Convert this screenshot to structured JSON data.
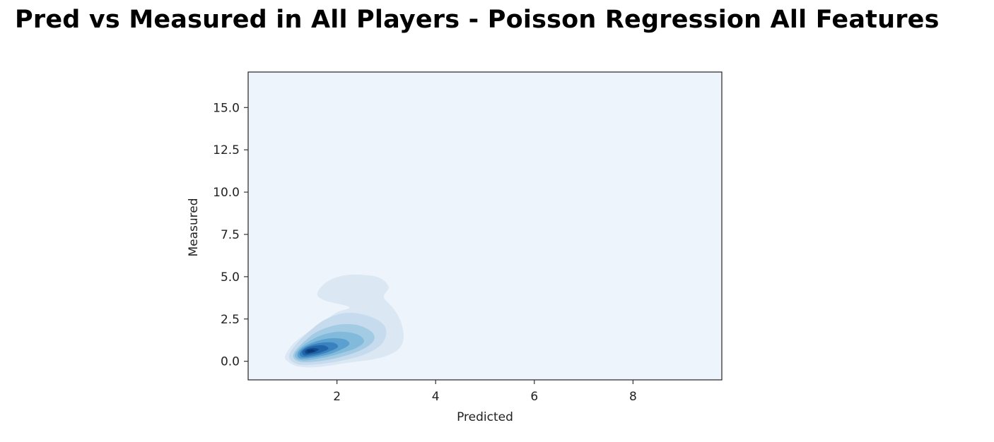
{
  "title": "Pred vs Measured in All Players - Poisson Regression All Features",
  "chart_data": {
    "type": "kde-contour",
    "xlabel": "Predicted",
    "ylabel": "Measured",
    "xlim": [
      0.2,
      9.8
    ],
    "ylim": [
      -1.1,
      17.1
    ],
    "x_ticks": [
      2,
      4,
      6,
      8
    ],
    "y_ticks": [
      0.0,
      2.5,
      5.0,
      7.5,
      10.0,
      12.5,
      15.0
    ],
    "y_tick_labels": [
      "0.0",
      "2.5",
      "5.0",
      "7.5",
      "10.0",
      "12.5",
      "15.0"
    ],
    "grid": false,
    "colormap": "Blues",
    "background_color": "#eef4fb",
    "density_peak": {
      "x": 1.45,
      "y": 0.6
    },
    "levels": [
      {
        "level": 1,
        "color": "#dbe8f4",
        "outline": [
          [
            1.2,
            -0.3
          ],
          [
            1.0,
            0.0
          ],
          [
            0.95,
            0.3
          ],
          [
            1.1,
            1.0
          ],
          [
            1.4,
            1.7
          ],
          [
            1.7,
            2.3
          ],
          [
            2.0,
            2.9
          ],
          [
            2.25,
            3.2
          ],
          [
            1.75,
            3.6
          ],
          [
            1.6,
            4.0
          ],
          [
            1.8,
            4.7
          ],
          [
            2.2,
            5.1
          ],
          [
            2.8,
            5.0
          ],
          [
            3.05,
            4.4
          ],
          [
            2.95,
            3.8
          ],
          [
            3.15,
            3.1
          ],
          [
            3.3,
            2.3
          ],
          [
            3.35,
            1.3
          ],
          [
            3.2,
            0.6
          ],
          [
            2.8,
            0.15
          ],
          [
            2.2,
            -0.1
          ],
          [
            1.6,
            -0.35
          ]
        ]
      },
      {
        "level": 2,
        "color": "#c7dbef",
        "outline": [
          [
            1.25,
            -0.2
          ],
          [
            1.05,
            0.1
          ],
          [
            1.05,
            0.5
          ],
          [
            1.2,
            1.1
          ],
          [
            1.45,
            1.8
          ],
          [
            1.75,
            2.45
          ],
          [
            2.15,
            2.85
          ],
          [
            2.55,
            2.75
          ],
          [
            2.9,
            2.3
          ],
          [
            3.0,
            1.7
          ],
          [
            2.9,
            1.0
          ],
          [
            2.6,
            0.45
          ],
          [
            2.2,
            0.1
          ],
          [
            1.7,
            -0.15
          ]
        ]
      },
      {
        "level": 3,
        "color": "#a3cbe3",
        "outline": [
          [
            1.3,
            -0.05
          ],
          [
            1.12,
            0.2
          ],
          [
            1.15,
            0.6
          ],
          [
            1.35,
            1.2
          ],
          [
            1.6,
            1.75
          ],
          [
            2.0,
            2.15
          ],
          [
            2.4,
            2.15
          ],
          [
            2.7,
            1.75
          ],
          [
            2.75,
            1.25
          ],
          [
            2.55,
            0.75
          ],
          [
            2.2,
            0.35
          ],
          [
            1.75,
            0.05
          ]
        ]
      },
      {
        "level": 4,
        "color": "#82badb",
        "outline": [
          [
            1.3,
            0.05
          ],
          [
            1.15,
            0.3
          ],
          [
            1.22,
            0.7
          ],
          [
            1.42,
            1.15
          ],
          [
            1.7,
            1.55
          ],
          [
            2.05,
            1.75
          ],
          [
            2.4,
            1.6
          ],
          [
            2.55,
            1.2
          ],
          [
            2.4,
            0.8
          ],
          [
            2.05,
            0.45
          ],
          [
            1.7,
            0.2
          ]
        ]
      },
      {
        "level": 5,
        "color": "#5ca0cf",
        "outline": [
          [
            1.3,
            0.15
          ],
          [
            1.2,
            0.4
          ],
          [
            1.3,
            0.8
          ],
          [
            1.55,
            1.15
          ],
          [
            1.85,
            1.35
          ],
          [
            2.15,
            1.3
          ],
          [
            2.25,
            1.0
          ],
          [
            2.05,
            0.65
          ],
          [
            1.75,
            0.35
          ]
        ]
      },
      {
        "level": 6,
        "color": "#3a82bf",
        "outline": [
          [
            1.3,
            0.25
          ],
          [
            1.25,
            0.5
          ],
          [
            1.38,
            0.85
          ],
          [
            1.65,
            1.08
          ],
          [
            1.92,
            1.1
          ],
          [
            2.02,
            0.85
          ],
          [
            1.82,
            0.55
          ],
          [
            1.55,
            0.33
          ]
        ]
      },
      {
        "level": 7,
        "color": "#2264a8",
        "outline": [
          [
            1.33,
            0.35
          ],
          [
            1.3,
            0.6
          ],
          [
            1.45,
            0.85
          ],
          [
            1.7,
            0.95
          ],
          [
            1.83,
            0.75
          ],
          [
            1.65,
            0.5
          ],
          [
            1.45,
            0.38
          ]
        ]
      },
      {
        "level": 8,
        "color": "#0f4b8f",
        "outline": [
          [
            1.37,
            0.45
          ],
          [
            1.36,
            0.65
          ],
          [
            1.5,
            0.78
          ],
          [
            1.63,
            0.72
          ],
          [
            1.56,
            0.55
          ],
          [
            1.45,
            0.47
          ]
        ]
      },
      {
        "level": 9,
        "color": "#0b3a72",
        "outline": [
          [
            1.41,
            0.52
          ],
          [
            1.4,
            0.66
          ],
          [
            1.5,
            0.7
          ],
          [
            1.55,
            0.6
          ],
          [
            1.48,
            0.53
          ]
        ]
      }
    ]
  }
}
